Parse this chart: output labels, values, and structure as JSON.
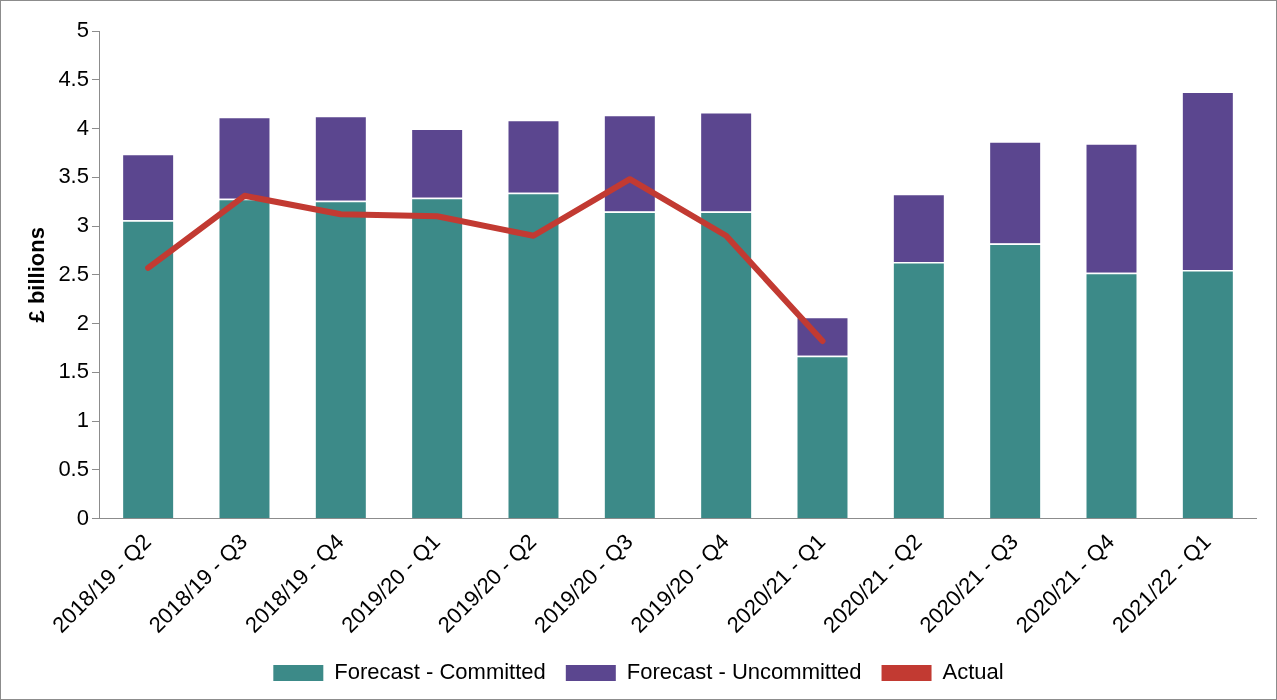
{
  "chart_data": {
    "type": "bar",
    "ylabel": "£ billions",
    "stacked": true,
    "categories": [
      "2018/19 - Q2",
      "2018/19 - Q3",
      "2018/19 - Q4",
      "2019/20 - Q1",
      "2019/20 - Q2",
      "2019/20 - Q3",
      "2019/20 - Q4",
      "2020/21 - Q1",
      "2020/21 - Q2",
      "2020/21 - Q3",
      "2020/21 - Q4",
      "2021/22 - Q1"
    ],
    "series": [
      {
        "name": "Forecast - Committed",
        "color": "#3c8a88",
        "values": [
          3.06,
          3.28,
          3.26,
          3.29,
          3.34,
          3.15,
          3.15,
          1.67,
          2.63,
          2.82,
          2.52,
          2.55
        ]
      },
      {
        "name": "Forecast - Uncommitted",
        "color": "#5b468f",
        "values": [
          0.68,
          0.84,
          0.87,
          0.71,
          0.75,
          0.99,
          1.02,
          0.4,
          0.7,
          1.05,
          1.33,
          1.83
        ]
      },
      {
        "name": "Actual",
        "type": "line",
        "color": "#c23a32",
        "values": [
          2.57,
          3.31,
          3.12,
          3.1,
          2.9,
          3.48,
          2.9,
          1.82,
          null,
          null,
          null,
          null
        ]
      }
    ],
    "ylim": [
      0,
      5
    ],
    "yticks": [
      0,
      0.5,
      1,
      1.5,
      2,
      2.5,
      3,
      3.5,
      4,
      4.5,
      5
    ],
    "grid": false,
    "legend": "bottom",
    "marker": "none",
    "line_style": "solid"
  }
}
